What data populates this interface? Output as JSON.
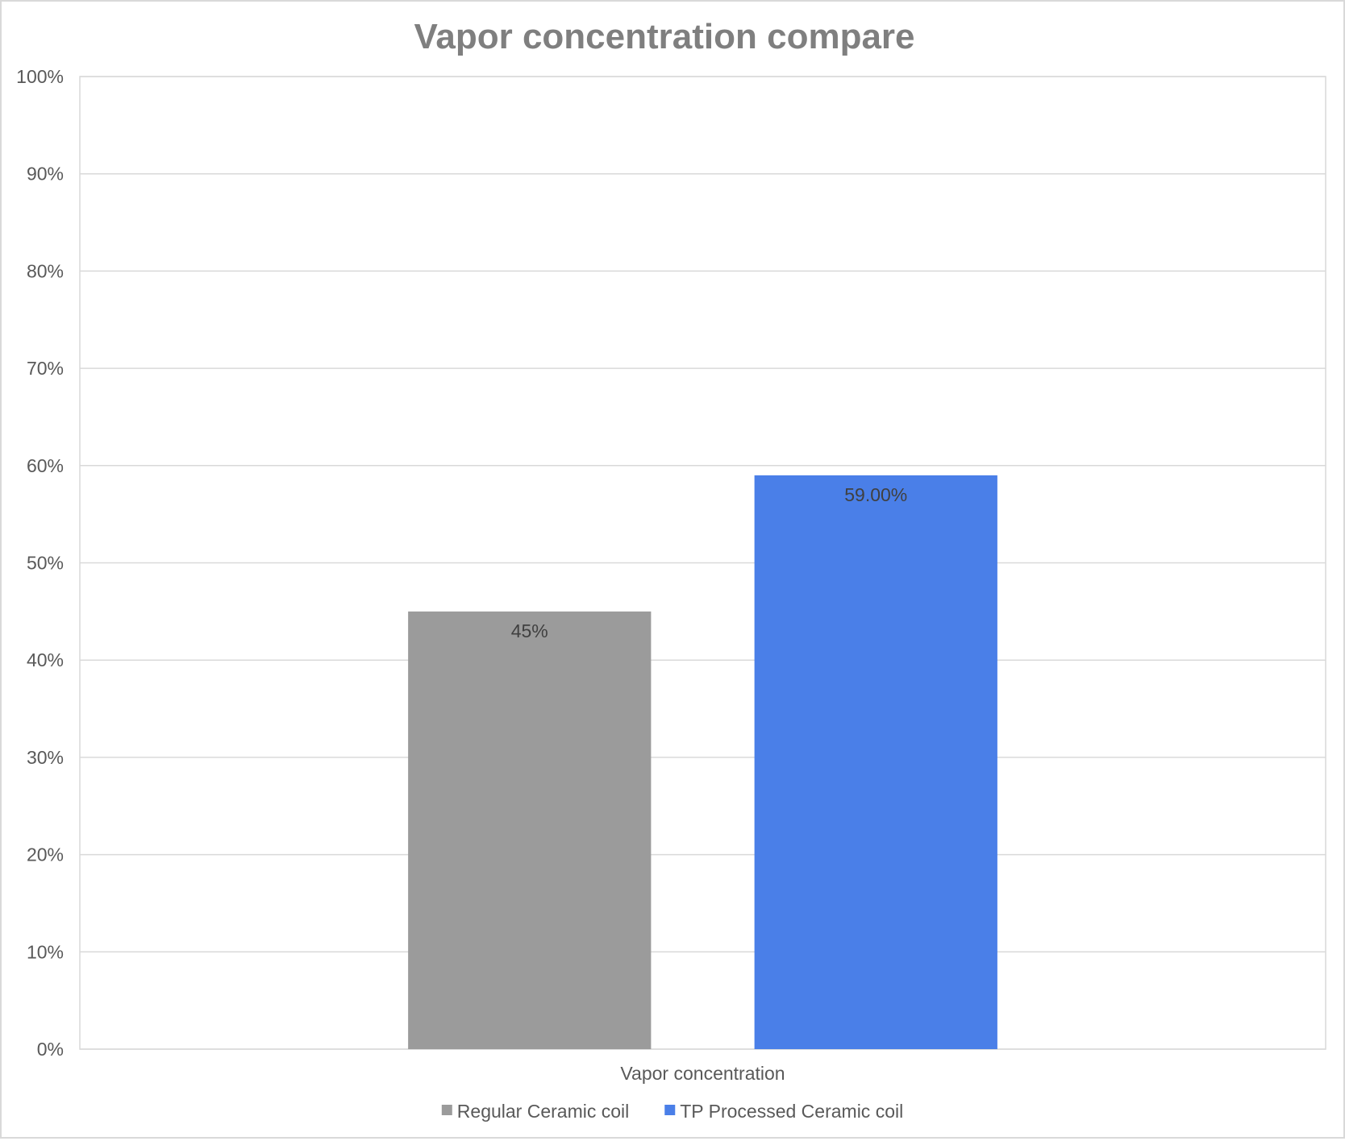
{
  "chart_data": {
    "type": "bar",
    "title": "Vapor concentration compare",
    "categories": [
      "Vapor concentration"
    ],
    "series": [
      {
        "name": "Regular Ceramic coil",
        "values": [
          45
        ],
        "label": "45%",
        "color": "#9b9b9b"
      },
      {
        "name": "TP Processed Ceramic coil",
        "values": [
          59
        ],
        "label": "59.00%",
        "color": "#4a7fe8"
      }
    ],
    "xlabel": "",
    "ylabel": "",
    "ylim": [
      0,
      100
    ],
    "yticks": [
      0,
      10,
      20,
      30,
      40,
      50,
      60,
      70,
      80,
      90,
      100
    ],
    "ytick_labels": [
      "0%",
      "10%",
      "20%",
      "30%",
      "40%",
      "50%",
      "60%",
      "70%",
      "80%",
      "90%",
      "100%"
    ],
    "grid": true,
    "legend": "bottom",
    "colors": {
      "title": "#7f7f7f",
      "text": "#595959",
      "grid": "#d9d9d9",
      "data_label": "#404040"
    }
  }
}
